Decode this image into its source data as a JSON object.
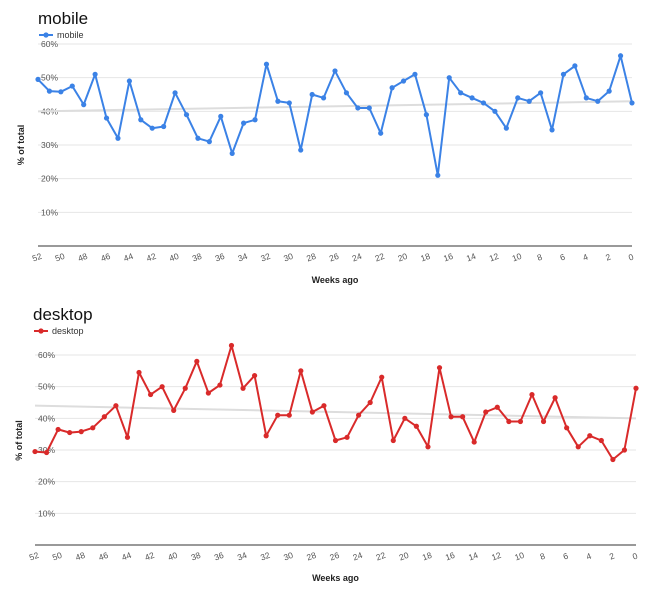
{
  "chart_data": [
    {
      "type": "line",
      "title": "mobile",
      "xlabel": "Weeks ago",
      "ylabel": "% of total",
      "color": "#3b82e6",
      "legend": "top-left",
      "grid": true,
      "trendline": true,
      "xlim": [
        52,
        0
      ],
      "ylim": [
        0,
        60
      ],
      "x_ticks": [
        52,
        50,
        48,
        46,
        44,
        42,
        40,
        38,
        36,
        34,
        32,
        30,
        28,
        26,
        24,
        22,
        20,
        18,
        16,
        14,
        12,
        10,
        8,
        6,
        4,
        2,
        0
      ],
      "x_tick_labels": [
        "52",
        "50",
        "48",
        "46",
        "44",
        "42",
        "40",
        "38",
        "36",
        "34",
        "32",
        "30",
        "28",
        "26",
        "24",
        "22",
        "20",
        "18",
        "16",
        "14",
        "12",
        "10",
        "8",
        "6",
        "4",
        "2",
        "0"
      ],
      "y_ticks": [
        10,
        20,
        30,
        40,
        50,
        60
      ],
      "y_tick_labels": [
        "10%",
        "20%",
        "30%",
        "40%",
        "50%",
        "60%"
      ],
      "series": [
        {
          "name": "mobile",
          "x": [
            52,
            51,
            50,
            49,
            48,
            47,
            46,
            45,
            44,
            43,
            42,
            41,
            40,
            39,
            38,
            37,
            36,
            35,
            34,
            33,
            32,
            31,
            30,
            29,
            28,
            27,
            26,
            25,
            24,
            23,
            22,
            21,
            20,
            19,
            18,
            17,
            16,
            15,
            14,
            13,
            12,
            11,
            10,
            9,
            8,
            7,
            6,
            5,
            4,
            3,
            2,
            1,
            0
          ],
          "values": [
            49.5,
            46,
            45.8,
            47.5,
            42,
            51,
            38,
            32,
            49,
            37.5,
            35,
            35.5,
            45.5,
            39,
            32,
            31,
            38.5,
            27.5,
            36.5,
            37.5,
            54,
            43,
            42.5,
            28.5,
            45,
            44,
            52,
            45.5,
            41,
            41,
            33.5,
            47,
            49,
            51,
            39,
            21,
            50,
            45.5,
            44,
            42.5,
            40,
            35,
            44,
            43,
            45.5,
            34.5,
            51,
            53.5,
            44,
            43,
            46,
            56.5,
            42.5
          ]
        }
      ],
      "trend_values": [
        40,
        43
      ]
    },
    {
      "type": "line",
      "title": "desktop",
      "xlabel": "Weeks ago",
      "ylabel": "% of total",
      "color": "#d92a2a",
      "legend": "top-left",
      "grid": true,
      "trendline": true,
      "xlim": [
        52,
        0
      ],
      "ylim": [
        0,
        66
      ],
      "x_ticks": [
        52,
        50,
        48,
        46,
        44,
        42,
        40,
        38,
        36,
        34,
        32,
        30,
        28,
        26,
        24,
        22,
        20,
        18,
        16,
        14,
        12,
        10,
        8,
        6,
        4,
        2,
        0
      ],
      "x_tick_labels": [
        "52",
        "50",
        "48",
        "46",
        "44",
        "42",
        "40",
        "38",
        "36",
        "34",
        "32",
        "30",
        "28",
        "26",
        "24",
        "22",
        "20",
        "18",
        "16",
        "14",
        "12",
        "10",
        "8",
        "6",
        "4",
        "2",
        "0"
      ],
      "y_ticks": [
        10,
        20,
        30,
        40,
        50,
        60
      ],
      "y_tick_labels": [
        "10%",
        "20%",
        "30%",
        "40%",
        "50%",
        "60%"
      ],
      "series": [
        {
          "name": "desktop",
          "x": [
            52,
            51,
            50,
            49,
            48,
            47,
            46,
            45,
            44,
            43,
            42,
            41,
            40,
            39,
            38,
            37,
            36,
            35,
            34,
            33,
            32,
            31,
            30,
            29,
            28,
            27,
            26,
            25,
            24,
            23,
            22,
            21,
            20,
            19,
            18,
            17,
            16,
            15,
            14,
            13,
            12,
            11,
            10,
            9,
            8,
            7,
            6,
            5,
            4,
            3,
            2,
            1,
            0
          ],
          "values": [
            29.5,
            29.2,
            36.5,
            35.5,
            35.8,
            37,
            40.5,
            44,
            34,
            54.5,
            47.5,
            50,
            42.5,
            49.5,
            58,
            48,
            50.5,
            63,
            49.5,
            53.5,
            34.5,
            41,
            41,
            55,
            42,
            44,
            33,
            34,
            41,
            45,
            53,
            33,
            40,
            37.5,
            31,
            56,
            40.5,
            40.5,
            32.5,
            42,
            43.5,
            39,
            39,
            47.5,
            39,
            46.5,
            37,
            31,
            34.5,
            33,
            27,
            30,
            49.5
          ]
        }
      ],
      "trend_values": [
        44,
        40
      ]
    }
  ]
}
